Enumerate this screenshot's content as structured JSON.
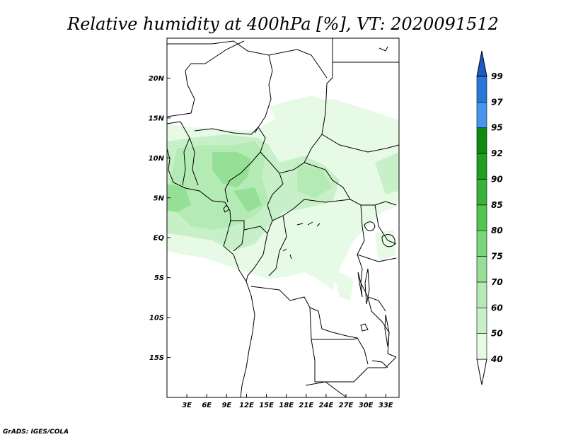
{
  "title": "Relative humidity at 400hPa [%], VT: 2020091512",
  "credit": "GrADS: IGES/COLA",
  "map": {
    "lon_range": [
      0,
      35
    ],
    "lat_range": [
      -20,
      25
    ],
    "lat_ticks": [
      {
        "value": 20,
        "label": "20N"
      },
      {
        "value": 15,
        "label": "15N"
      },
      {
        "value": 10,
        "label": "10N"
      },
      {
        "value": 5,
        "label": "5N"
      },
      {
        "value": 0,
        "label": "EQ"
      },
      {
        "value": -5,
        "label": "5S"
      },
      {
        "value": -10,
        "label": "10S"
      },
      {
        "value": -15,
        "label": "15S"
      }
    ],
    "lon_ticks": [
      {
        "value": 3,
        "label": "3E"
      },
      {
        "value": 6,
        "label": "6E"
      },
      {
        "value": 9,
        "label": "9E"
      },
      {
        "value": 12,
        "label": "12E"
      },
      {
        "value": 15,
        "label": "15E"
      },
      {
        "value": 18,
        "label": "18E"
      },
      {
        "value": 21,
        "label": "21E"
      },
      {
        "value": 24,
        "label": "24E"
      },
      {
        "value": 27,
        "label": "27E"
      },
      {
        "value": 30,
        "label": "30E"
      },
      {
        "value": 33,
        "label": "33E"
      }
    ]
  },
  "colorbar": {
    "levels": [
      "40",
      "50",
      "60",
      "70",
      "75",
      "80",
      "85",
      "90",
      "92",
      "95",
      "97",
      "99"
    ],
    "colors": [
      "#e6fae6",
      "#c8f0c8",
      "#b4eab4",
      "#96df96",
      "#78d778",
      "#50c850",
      "#37b437",
      "#1ea01e",
      "#0f8c0f",
      "#4696f0",
      "#2878dc",
      "#1e5ac8"
    ],
    "below_color": "#ffffff"
  }
}
